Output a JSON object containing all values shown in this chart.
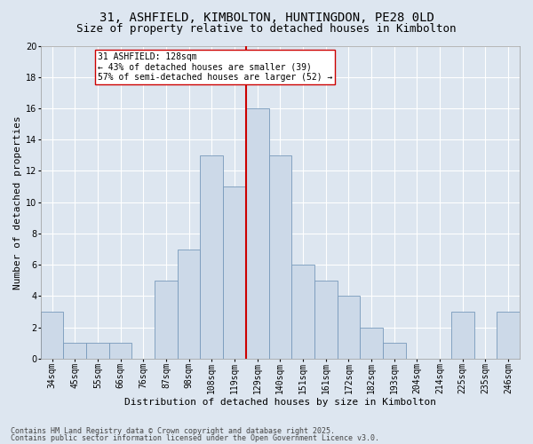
{
  "title1": "31, ASHFIELD, KIMBOLTON, HUNTINGDON, PE28 0LD",
  "title2": "Size of property relative to detached houses in Kimbolton",
  "xlabel": "Distribution of detached houses by size in Kimbolton",
  "ylabel": "Number of detached properties",
  "categories": [
    "34sqm",
    "45sqm",
    "55sqm",
    "66sqm",
    "76sqm",
    "87sqm",
    "98sqm",
    "108sqm",
    "119sqm",
    "129sqm",
    "140sqm",
    "151sqm",
    "161sqm",
    "172sqm",
    "182sqm",
    "193sqm",
    "204sqm",
    "214sqm",
    "225sqm",
    "235sqm",
    "246sqm"
  ],
  "values": [
    3,
    1,
    1,
    1,
    0,
    5,
    7,
    13,
    11,
    16,
    13,
    6,
    5,
    4,
    2,
    1,
    0,
    0,
    3,
    0,
    3
  ],
  "bar_color": "#ccd9e8",
  "bar_edge_color": "#7799bb",
  "background_color": "#dde6f0",
  "grid_color": "#ffffff",
  "vline_color": "#cc0000",
  "annotation_title": "31 ASHFIELD: 128sqm",
  "annotation_line1": "← 43% of detached houses are smaller (39)",
  "annotation_line2": "57% of semi-detached houses are larger (52) →",
  "footer1": "Contains HM Land Registry data © Crown copyright and database right 2025.",
  "footer2": "Contains public sector information licensed under the Open Government Licence v3.0.",
  "ylim": [
    0,
    20
  ],
  "yticks": [
    0,
    2,
    4,
    6,
    8,
    10,
    12,
    14,
    16,
    18,
    20
  ],
  "title_fontsize": 10,
  "subtitle_fontsize": 9,
  "axis_label_fontsize": 8,
  "tick_fontsize": 7,
  "annotation_fontsize": 7,
  "footer_fontsize": 6
}
